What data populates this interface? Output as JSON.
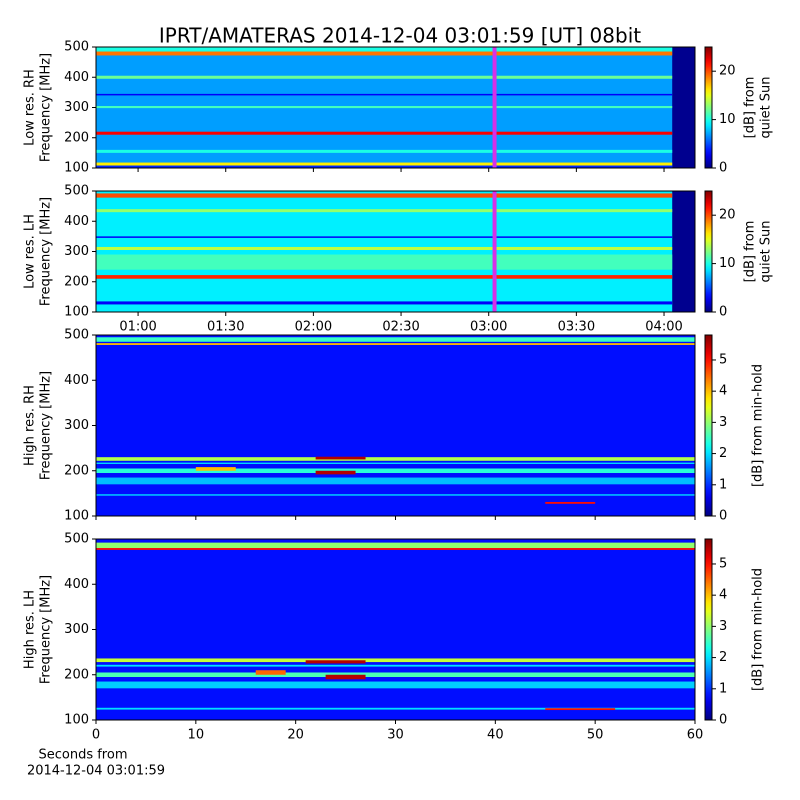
{
  "title": "IPRT/AMATERAS 2014-12-04 03:01:59 [UT]   08bit",
  "xlabel": [
    "Seconds from",
    "2014-12-04 03:01:59"
  ],
  "colormap": "jet",
  "chart_data": [
    {
      "type": "spectrogram",
      "ylabel": [
        "Low res. RH",
        "Frequency [MHz]"
      ],
      "xlim": [
        45.6,
        250.6
      ],
      "xticks": [
        {
          "value": 60,
          "label": "01:00"
        },
        {
          "value": 90,
          "label": "01:30"
        },
        {
          "value": 120,
          "label": "02:00"
        },
        {
          "value": 150,
          "label": "02:30"
        },
        {
          "value": 180,
          "label": "03:00"
        },
        {
          "value": 210,
          "label": "03:30"
        },
        {
          "value": 240,
          "label": "04:00"
        }
      ],
      "ylim": [
        100,
        500
      ],
      "yticks": [
        100,
        200,
        300,
        400,
        500
      ],
      "clim": [
        0,
        25
      ],
      "cticks": [
        0,
        10,
        20
      ],
      "clabel": [
        "[dB] from",
        "quiet Sun"
      ],
      "data_x": [
        45.6,
        242.8
      ],
      "background": 7,
      "cursor": 182,
      "bands": [
        {
          "f": [
            485,
            500
          ],
          "level": 10
        },
        {
          "f": [
            472,
            485
          ],
          "level": 19
        },
        {
          "f": [
            395,
            405
          ],
          "level": 12
        },
        {
          "f": [
            340,
            345
          ],
          "level": 3
        },
        {
          "f": [
            298,
            305
          ],
          "level": 11
        },
        {
          "f": [
            210,
            220
          ],
          "level": 22
        },
        {
          "f": [
            150,
            160
          ],
          "level": 10
        },
        {
          "f": [
            108,
            118
          ],
          "level": 16
        },
        {
          "f": [
            100,
            108
          ],
          "level": 4
        }
      ],
      "patches": []
    },
    {
      "type": "spectrogram",
      "ylabel": [
        "Low res. LH",
        "Frequency [MHz]"
      ],
      "xlim": [
        45.6,
        250.6
      ],
      "xticks": [
        {
          "value": 60,
          "label": "01:00"
        },
        {
          "value": 90,
          "label": "01:30"
        },
        {
          "value": 120,
          "label": "02:00"
        },
        {
          "value": 150,
          "label": "02:30"
        },
        {
          "value": 180,
          "label": "03:00"
        },
        {
          "value": 210,
          "label": "03:30"
        },
        {
          "value": 240,
          "label": "04:00"
        }
      ],
      "ylim": [
        100,
        500
      ],
      "yticks": [
        100,
        200,
        300,
        400,
        500
      ],
      "clim": [
        0,
        25
      ],
      "cticks": [
        0,
        10,
        20
      ],
      "clabel": [
        "[dB] from",
        "quiet Sun"
      ],
      "data_x": [
        45.6,
        242.8
      ],
      "background": 9,
      "cursor": 182,
      "bands": [
        {
          "f": [
            478,
            492
          ],
          "level": 20
        },
        {
          "f": [
            430,
            440
          ],
          "level": 13
        },
        {
          "f": [
            345,
            350
          ],
          "level": 3
        },
        {
          "f": [
            305,
            315
          ],
          "level": 14
        },
        {
          "f": [
            240,
            290
          ],
          "level": 11
        },
        {
          "f": [
            210,
            222
          ],
          "level": 21
        },
        {
          "f": [
            125,
            135
          ],
          "level": 3
        }
      ],
      "patches": []
    },
    {
      "type": "spectrogram",
      "ylabel": [
        "High res. RH",
        "Frequency [MHz]"
      ],
      "xlim": [
        0,
        60
      ],
      "xticks": [
        0,
        10,
        20,
        30,
        40,
        50,
        60
      ],
      "ylim": [
        100,
        500
      ],
      "yticks": [
        100,
        200,
        300,
        400,
        500
      ],
      "clim": [
        0,
        5.8
      ],
      "cticks": [
        0,
        1,
        2,
        3,
        4,
        5
      ],
      "clabel": [
        "[dB] from min-hold"
      ],
      "data_x": [
        0,
        60
      ],
      "background": 0.8,
      "bands": [
        {
          "f": [
            485,
            495
          ],
          "level": 2.5
        },
        {
          "f": [
            478,
            482
          ],
          "level": 4
        },
        {
          "f": [
            222,
            230
          ],
          "level": 3.2
        },
        {
          "f": [
            215,
            218
          ],
          "level": 2
        },
        {
          "f": [
            195,
            205
          ],
          "level": 2.4
        },
        {
          "f": [
            170,
            185
          ],
          "level": 1.8
        },
        {
          "f": [
            145,
            148
          ],
          "level": 2
        }
      ],
      "patches": [
        {
          "x": [
            22,
            27
          ],
          "f": [
            225,
            231
          ],
          "level": 5.5
        },
        {
          "x": [
            10,
            14
          ],
          "f": [
            200,
            208
          ],
          "level": 4
        },
        {
          "x": [
            22,
            26
          ],
          "f": [
            192,
            200
          ],
          "level": 5.5
        },
        {
          "x": [
            45,
            50
          ],
          "f": [
            127,
            131
          ],
          "level": 5
        }
      ]
    },
    {
      "type": "spectrogram",
      "ylabel": [
        "High res. LH",
        "Frequency [MHz]"
      ],
      "xlim": [
        0,
        60
      ],
      "xticks": [
        0,
        10,
        20,
        30,
        40,
        50,
        60
      ],
      "ylim": [
        100,
        500
      ],
      "yticks": [
        100,
        200,
        300,
        400,
        500
      ],
      "clim": [
        0,
        5.8
      ],
      "cticks": [
        0,
        1,
        2,
        3,
        4,
        5
      ],
      "clabel": [
        "[dB] from min-hold"
      ],
      "data_x": [
        0,
        60
      ],
      "background": 0.8,
      "bands": [
        {
          "f": [
            480,
            492
          ],
          "level": 3
        },
        {
          "f": [
            476,
            480
          ],
          "level": 5
        },
        {
          "f": [
            228,
            236
          ],
          "level": 3.3
        },
        {
          "f": [
            218,
            222
          ],
          "level": 2
        },
        {
          "f": [
            195,
            205
          ],
          "level": 2.6
        },
        {
          "f": [
            170,
            185
          ],
          "level": 1.9
        },
        {
          "f": [
            123,
            127
          ],
          "level": 2
        }
      ],
      "patches": [
        {
          "x": [
            21,
            27
          ],
          "f": [
            225,
            232
          ],
          "level": 5.5
        },
        {
          "x": [
            16,
            19
          ],
          "f": [
            200,
            210
          ],
          "level": 4.5
        },
        {
          "x": [
            23,
            27
          ],
          "f": [
            190,
            200
          ],
          "level": 5.5
        },
        {
          "x": [
            45,
            52
          ],
          "f": [
            122,
            126
          ],
          "level": 5
        }
      ]
    }
  ]
}
